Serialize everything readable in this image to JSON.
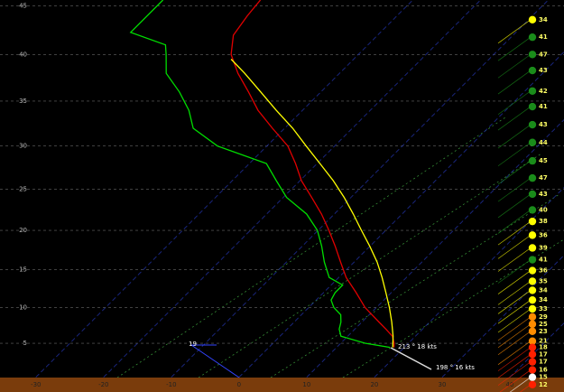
{
  "chart_data": {
    "type": "skew-t",
    "xlim": [
      -35.3,
      48
    ],
    "ylim": [
      -2.2,
      45.6
    ],
    "xticks": [
      -30,
      -20,
      -10,
      0,
      10,
      20,
      30,
      40
    ],
    "yticks": [
      5,
      10,
      15,
      20,
      25,
      30,
      35,
      40,
      45
    ],
    "grid": true,
    "series": [
      {
        "color": "#00dd00",
        "x": [
          17.9,
          13.6,
          9.0,
          7.7,
          6.9,
          5.8,
          3.7,
          2.2,
          1.7,
          1.7,
          -1.4,
          -4.4,
          -7.1,
          -10.1,
          -14.1,
          -19.5,
          -23.5,
          -27.5,
          -37.3,
          -43.5,
          -46.8,
          -50.9,
          -55.6,
          -58.4,
          -59.9,
          -66.9,
          -66.9
        ],
        "values": [
          4.4,
          5,
          6,
          7,
          8,
          9,
          10,
          11,
          12,
          13,
          14,
          16,
          18,
          20,
          22,
          24,
          26,
          28,
          30,
          32,
          34,
          36,
          38,
          40,
          41,
          42.3,
          45.6
        ]
      },
      {
        "color": "#e00000",
        "x": [
          18.5,
          17.9,
          16.6,
          14.6,
          12.5,
          8.3,
          4.8,
          1.1,
          -2.0,
          -5.1,
          -8.4,
          -11.9,
          -15.8,
          -19.8,
          -23.2,
          -26.9,
          -31.8,
          -36.6,
          -40.7,
          -45.0,
          -48.8,
          -51.3,
          -52.1,
          -52.5
        ],
        "values": [
          4.4,
          5,
          6,
          7,
          8,
          10,
          12,
          14,
          16,
          18,
          20,
          22,
          24,
          26,
          28,
          30,
          32,
          34,
          36,
          38,
          40,
          42,
          44,
          45.6
        ]
      },
      {
        "color": "#ffff00",
        "x": [
          18.3,
          16.7,
          14.4,
          11.9,
          9.2,
          6.4,
          3.4,
          0,
          -3.6,
          -7.2,
          -11.0,
          -15.1,
          -19.6,
          -24.2,
          -28.8,
          -33.9,
          -38.9,
          -44.0,
          -48.1
        ],
        "values": [
          4.4,
          6,
          8,
          10,
          12,
          14,
          16,
          18,
          20,
          22,
          24,
          26,
          28,
          30,
          32,
          34,
          36,
          38,
          39.5
        ]
      }
    ],
    "winds": {
      "heights": [
        43.6,
        41.8,
        40,
        38.3,
        36.1,
        34.4,
        32.4,
        30.4,
        28.3,
        26.3,
        24.4,
        22.5,
        21.1,
        19.4,
        17.8,
        16.3,
        14.9,
        13.5,
        12.3,
        11.0,
        9.8,
        8.7,
        7.7,
        6.7,
        5.3,
        4.4,
        3.4,
        2.3,
        1.1,
        0,
        -1.1
      ],
      "values": [
        34,
        41,
        47,
        43,
        42,
        41,
        43,
        44,
        45,
        47,
        43,
        40,
        38,
        36,
        39,
        41,
        36,
        35,
        34,
        34,
        33,
        29,
        25,
        23,
        21,
        18,
        17,
        17,
        16,
        15,
        12
      ],
      "colors": [
        "#ffff00",
        "#1a8c1a",
        "#1a8c1a",
        "#1a8c1a",
        "#1a8c1a",
        "#1a8c1a",
        "#1a8c1a",
        "#1a8c1a",
        "#1a8c1a",
        "#1a8c1a",
        "#1a8c1a",
        "#1a8c1a",
        "#ffff00",
        "#ffff00",
        "#ffff00",
        "#1a8c1a",
        "#ffff00",
        "#ffff00",
        "#ffff00",
        "#ffff00",
        "#ffff00",
        "#ff8c00",
        "#ff8c00",
        "#ff8c00",
        "#ff8c00",
        "#ff2000",
        "#ff2000",
        "#ff2000",
        "#ff2000",
        "#ffffff",
        "#ff2000"
      ]
    },
    "annotations": [
      "213 ° 18 kts",
      "198 ° 16 kts",
      "19"
    ]
  }
}
